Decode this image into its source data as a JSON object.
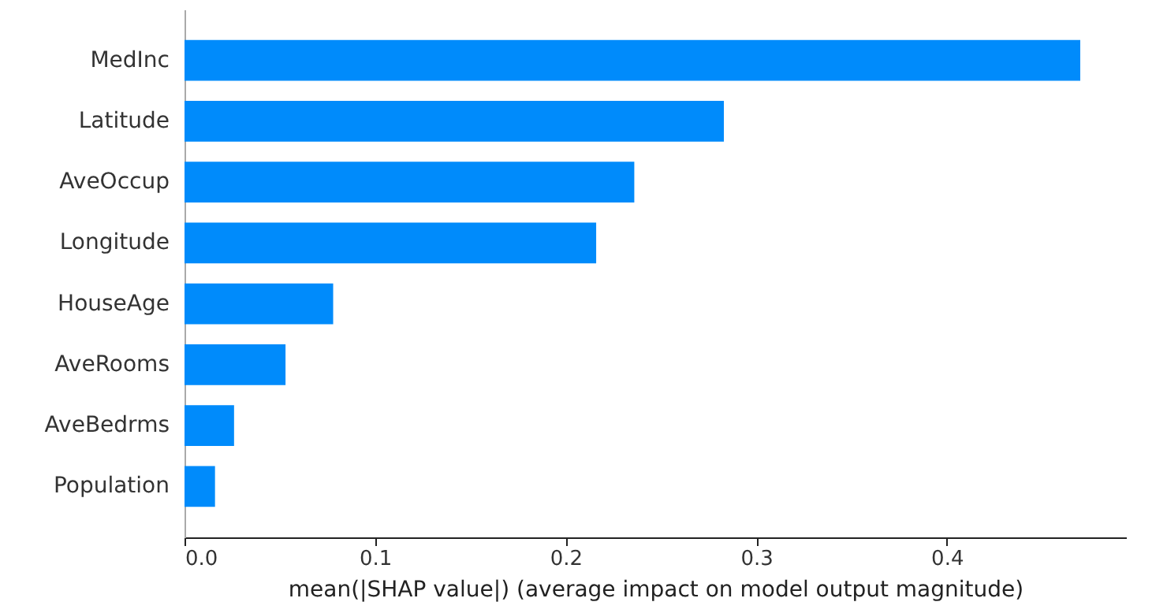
{
  "chart_data": {
    "type": "bar",
    "orientation": "horizontal",
    "categories": [
      "MedInc",
      "Latitude",
      "AveOccup",
      "Longitude",
      "HouseAge",
      "AveRooms",
      "AveBedrms",
      "Population"
    ],
    "values": [
      0.47,
      0.283,
      0.236,
      0.216,
      0.078,
      0.053,
      0.026,
      0.016
    ],
    "color": "#008bfb",
    "xlabel": "mean(|SHAP value|) (average impact on model output magnitude)",
    "xlim": [
      0,
      0.494
    ],
    "xticks": [
      {
        "value": 0,
        "label": "0.0"
      },
      {
        "value": 0.1,
        "label": "0.1"
      },
      {
        "value": 0.2,
        "label": "0.2"
      },
      {
        "value": 0.3,
        "label": "0.3"
      },
      {
        "value": 0.4,
        "label": "0.4"
      }
    ],
    "grid": false
  }
}
